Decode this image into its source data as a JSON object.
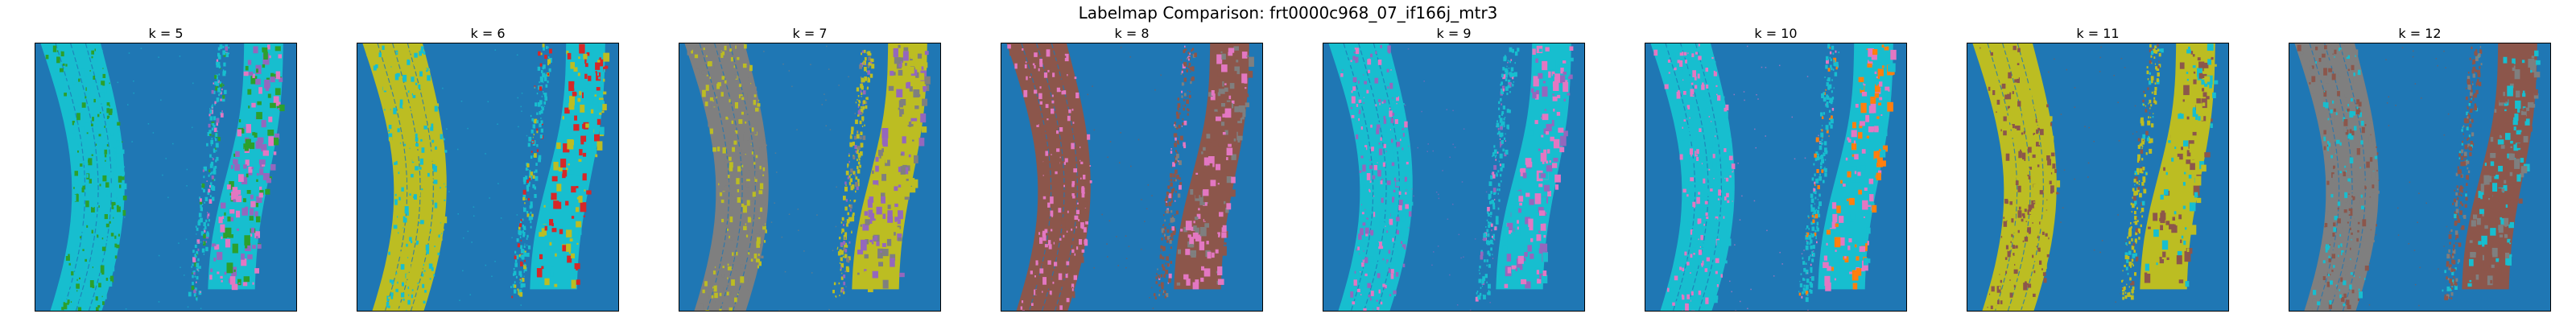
{
  "figure": {
    "title": "Labelmap Comparison: frt0000c968_07_if166j_mtr3"
  },
  "colors": {
    "background": "#1f77b4",
    "palette": [
      "#1f77b4",
      "#ff7f0e",
      "#2ca02c",
      "#d62728",
      "#9467bd",
      "#8c564b",
      "#e377c2",
      "#7f7f7f",
      "#bcbd22",
      "#17becf"
    ]
  },
  "panels": [
    {
      "title": "k = 5",
      "main": "#17becf",
      "speckle": [
        "#17becf",
        "#2ca02c"
      ],
      "right": "#17becf",
      "patches": [
        "#2ca02c",
        "#e377c2",
        "#9467bd"
      ]
    },
    {
      "title": "k = 6",
      "main": "#bcbd22",
      "speckle": [
        "#17becf",
        "#bcbd22"
      ],
      "right": "#17becf",
      "patches": [
        "#bcbd22",
        "#d62728",
        "#17becf"
      ]
    },
    {
      "title": "k = 7",
      "main": "#7f7f7f",
      "speckle": [
        "#7f7f7f",
        "#bcbd22"
      ],
      "right": "#bcbd22",
      "patches": [
        "#9467bd",
        "#7f7f7f",
        "#bcbd22"
      ]
    },
    {
      "title": "k = 8",
      "main": "#8c564b",
      "speckle": [
        "#8c564b",
        "#e377c2"
      ],
      "right": "#8c564b",
      "patches": [
        "#7f7f7f",
        "#e377c2",
        "#8c564b"
      ]
    },
    {
      "title": "k = 9",
      "main": "#17becf",
      "speckle": [
        "#9467bd",
        "#e377c2",
        "#17becf"
      ],
      "right": "#17becf",
      "patches": [
        "#9467bd",
        "#e377c2",
        "#17becf"
      ]
    },
    {
      "title": "k = 10",
      "main": "#17becf",
      "speckle": [
        "#e377c2",
        "#17becf"
      ],
      "right": "#17becf",
      "patches": [
        "#e377c2",
        "#ff7f0e",
        "#17becf"
      ]
    },
    {
      "title": "k = 11",
      "main": "#bcbd22",
      "speckle": [
        "#8c564b",
        "#bcbd22"
      ],
      "right": "#bcbd22",
      "patches": [
        "#8c564b",
        "#17becf",
        "#bcbd22"
      ]
    },
    {
      "title": "k = 12",
      "main": "#7f7f7f",
      "speckle": [
        "#8c564b",
        "#17becf",
        "#7f7f7f"
      ],
      "right": "#8c564b",
      "patches": [
        "#7f7f7f",
        "#17becf",
        "#8c564b"
      ]
    }
  ]
}
